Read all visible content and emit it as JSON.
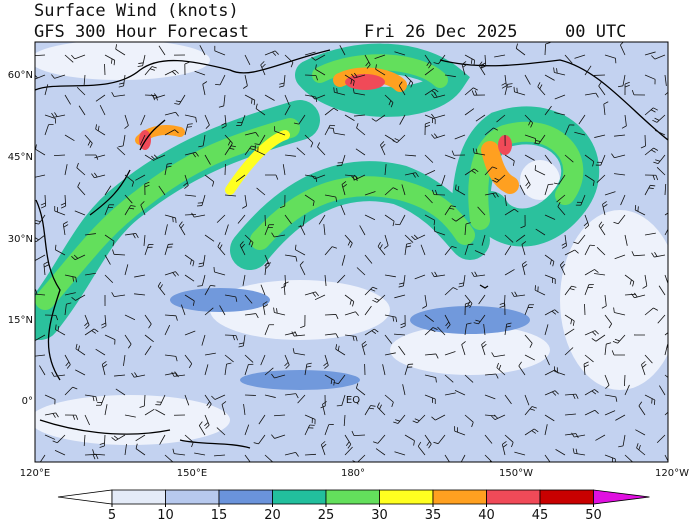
{
  "header": {
    "title": "Surface Wind (knots)",
    "subtitle": "GFS 300 Hour Forecast",
    "date": "Fri 26 Dec 2025",
    "time": "00 UTC"
  },
  "map": {
    "lat_labels": [
      "60°N",
      "45°N",
      "30°N",
      "15°N",
      "0°"
    ],
    "lon_labels": [
      "120°E",
      "150°E",
      "180°",
      "150°W",
      "120°W"
    ],
    "equator_label": "EQ"
  },
  "colorbar": {
    "levels": [
      5,
      10,
      15,
      20,
      25,
      30,
      35,
      40,
      45,
      50
    ],
    "colors": [
      "#ffffff",
      "#e4ebf8",
      "#b7c9ee",
      "#6a93db",
      "#22bf9d",
      "#63df5c",
      "#ffff20",
      "#ffa020",
      "#f04a58",
      "#c80000",
      "#e010e0"
    ]
  }
}
